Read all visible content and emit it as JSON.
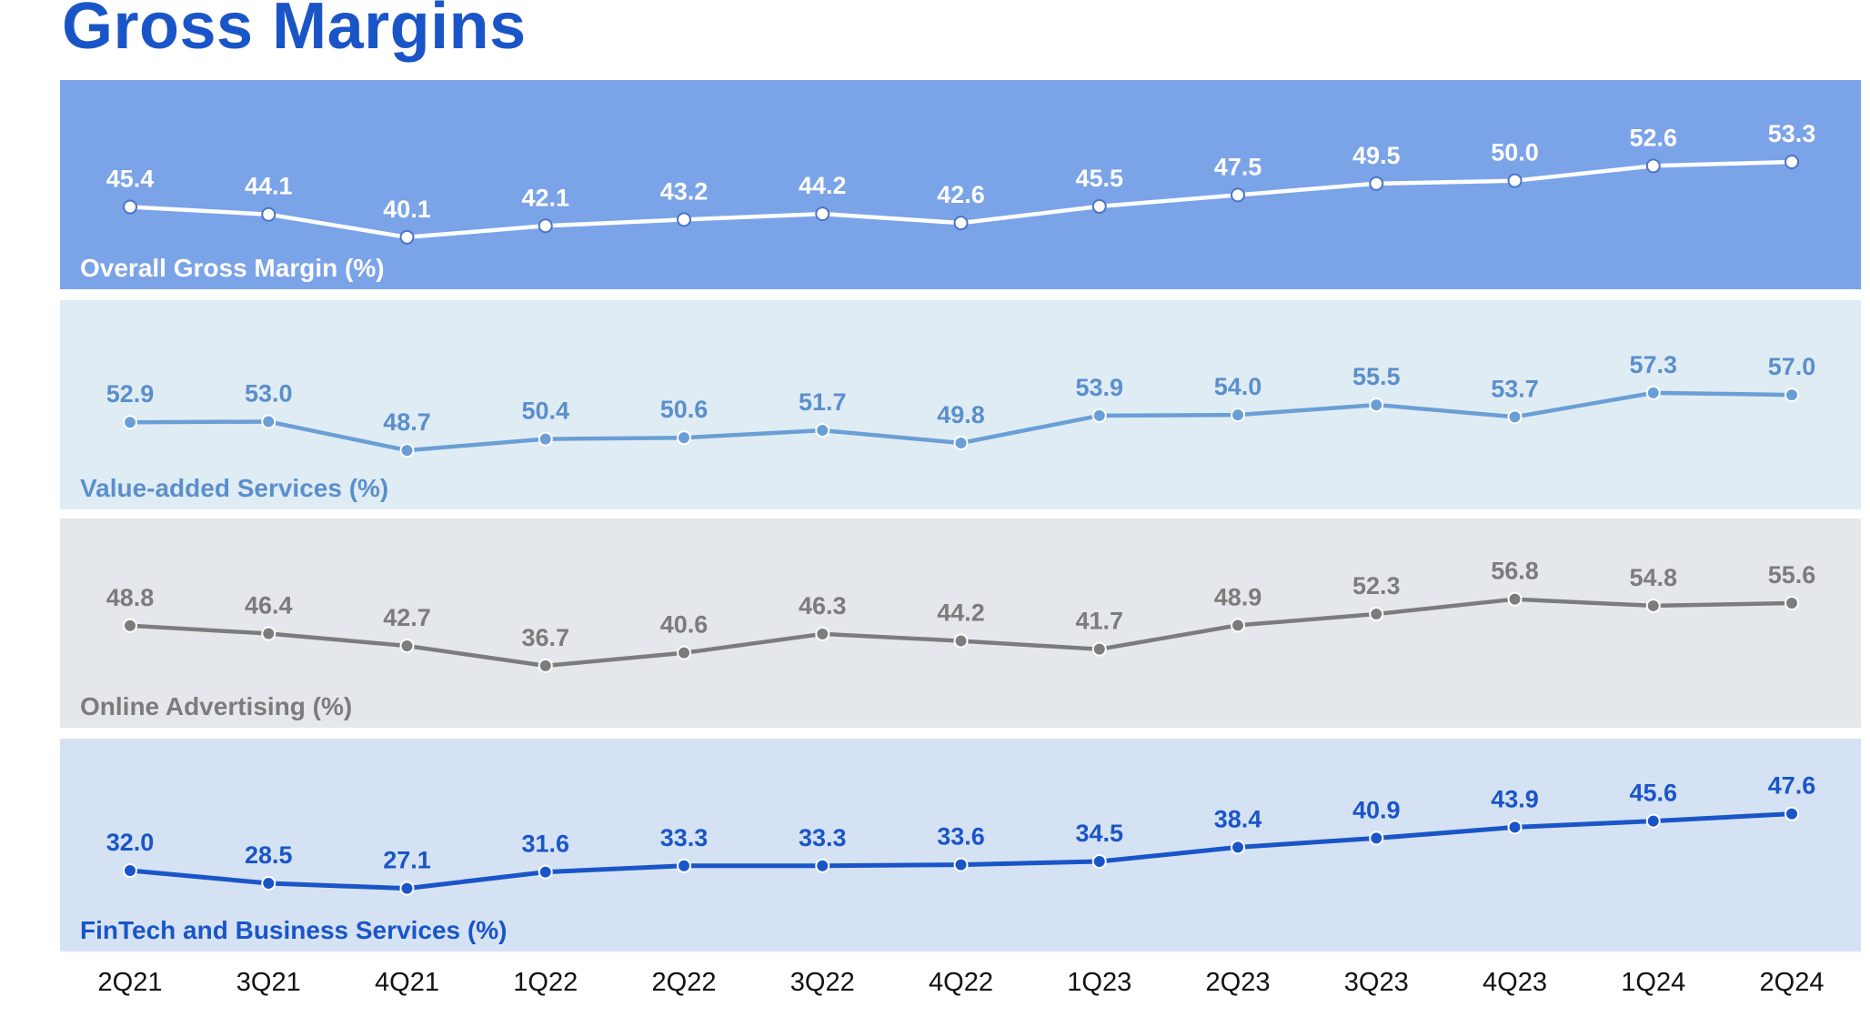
{
  "title": "Gross Margins",
  "chart_data": {
    "type": "line",
    "categories": [
      "2Q21",
      "3Q21",
      "4Q21",
      "1Q22",
      "2Q22",
      "3Q22",
      "4Q22",
      "1Q23",
      "2Q23",
      "3Q23",
      "4Q23",
      "1Q24",
      "2Q24"
    ],
    "series": [
      {
        "name": "Overall Gross Margin (%)",
        "values": [
          45.4,
          44.1,
          40.1,
          42.1,
          43.2,
          44.2,
          42.6,
          45.5,
          47.5,
          49.5,
          50.0,
          52.6,
          53.3
        ],
        "labels": [
          "45.4",
          "44.1",
          "40.1",
          "42.1",
          "43.2",
          "44.2",
          "42.6",
          "45.5",
          "47.5",
          "49.5",
          "50.0",
          "52.6",
          "53.3"
        ],
        "colors": {
          "panel": "#7ba3e8",
          "line": "#ffffff",
          "marker_fill": "#ffffff",
          "marker_stroke": "#4a74c8",
          "label": "#ffffff"
        },
        "ylim": [
          38,
          56
        ]
      },
      {
        "name": "Value-added Services (%)",
        "values": [
          52.9,
          53.0,
          48.7,
          50.4,
          50.6,
          51.7,
          49.8,
          53.9,
          54.0,
          55.5,
          53.7,
          57.3,
          57.0
        ],
        "labels": [
          "52.9",
          "53.0",
          "48.7",
          "50.4",
          "50.6",
          "51.7",
          "49.8",
          "53.9",
          "54.0",
          "55.5",
          "53.7",
          "57.3",
          "57.0"
        ],
        "colors": {
          "panel": "#e0ecf4",
          "line": "#6a9fd6",
          "marker_fill": "#6a9fd6",
          "marker_stroke": "#ffffff",
          "label": "#5a8fcc"
        },
        "ylim": [
          46,
          60
        ]
      },
      {
        "name": "Online Advertising (%)",
        "values": [
          48.8,
          46.4,
          42.7,
          36.7,
          40.6,
          46.3,
          44.2,
          41.7,
          48.9,
          52.3,
          56.8,
          54.8,
          55.6
        ],
        "labels": [
          "48.8",
          "46.4",
          "42.7",
          "36.7",
          "40.6",
          "46.3",
          "44.2",
          "41.7",
          "48.9",
          "52.3",
          "56.8",
          "54.8",
          "55.6"
        ],
        "colors": {
          "panel": "#e4e7ec",
          "line": "#7c7c7c",
          "marker_fill": "#7c7c7c",
          "marker_stroke": "#ffffff",
          "label": "#7c7c7c"
        },
        "ylim": [
          32,
          60
        ]
      },
      {
        "name": "FinTech and Business Services (%)",
        "values": [
          32.0,
          28.5,
          27.1,
          31.6,
          33.3,
          33.3,
          33.6,
          34.5,
          38.4,
          40.9,
          43.9,
          45.6,
          47.6
        ],
        "labels": [
          "32.0",
          "28.5",
          "27.1",
          "31.6",
          "33.3",
          "33.3",
          "33.6",
          "34.5",
          "38.4",
          "40.9",
          "43.9",
          "45.6",
          "47.6"
        ],
        "colors": {
          "panel": "#d5e2f3",
          "line": "#1a55c8",
          "marker_fill": "#1a55c8",
          "marker_stroke": "#ffffff",
          "label": "#1a55c8"
        },
        "ylim": [
          22,
          52
        ]
      }
    ]
  }
}
